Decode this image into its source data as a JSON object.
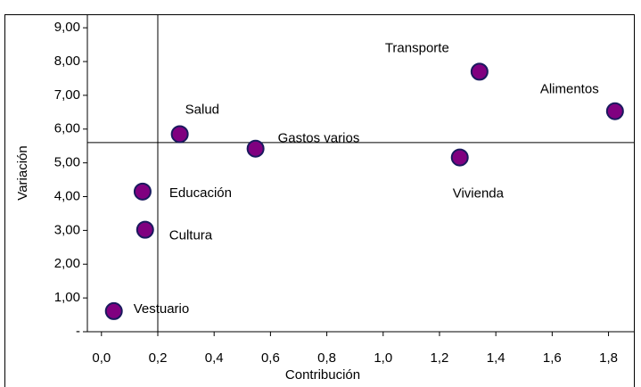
{
  "chart_data": {
    "type": "scatter",
    "xlabel": "Contribución",
    "ylabel": "Variación",
    "labels": [
      "Vestuario",
      "Cultura",
      "Educación",
      "Salud",
      "Gastos varios",
      "Vivienda",
      "Transporte",
      "Alimentos"
    ],
    "x": [
      0.044,
      0.155,
      0.146,
      0.278,
      0.547,
      1.272,
      1.342,
      1.823
    ],
    "values": [
      0.61,
      3.02,
      4.15,
      5.85,
      5.42,
      5.16,
      7.7,
      6.53
    ],
    "color": "#800080",
    "x_reference": 0.2,
    "y_reference": 5.6,
    "xlim": [
      -0.05,
      1.89
    ],
    "ylim": [
      0,
      9.4
    ],
    "xticks": [
      {
        "value": 0,
        "label": "0,0"
      },
      {
        "value": 0.2,
        "label": "0,2"
      },
      {
        "value": 0.4,
        "label": "0,4"
      },
      {
        "value": 0.6,
        "label": "0,6"
      },
      {
        "value": 0.8,
        "label": "0,8"
      },
      {
        "value": 1.0,
        "label": "1,0"
      },
      {
        "value": 1.2,
        "label": "1,2"
      },
      {
        "value": 1.4,
        "label": "1,4"
      },
      {
        "value": 1.6,
        "label": "1,6"
      },
      {
        "value": 1.8,
        "label": "1,8"
      }
    ],
    "yticks": [
      {
        "value": 0,
        "label": "-"
      },
      {
        "value": 1,
        "label": "1,00"
      },
      {
        "value": 2,
        "label": "2,00"
      },
      {
        "value": 3,
        "label": "3,00"
      },
      {
        "value": 4,
        "label": "4,00"
      },
      {
        "value": 5,
        "label": "5,00"
      },
      {
        "value": 6,
        "label": "6,00"
      },
      {
        "value": 7,
        "label": "7,00"
      },
      {
        "value": 8,
        "label": "8,00"
      },
      {
        "value": 9,
        "label": "9,00"
      }
    ]
  }
}
